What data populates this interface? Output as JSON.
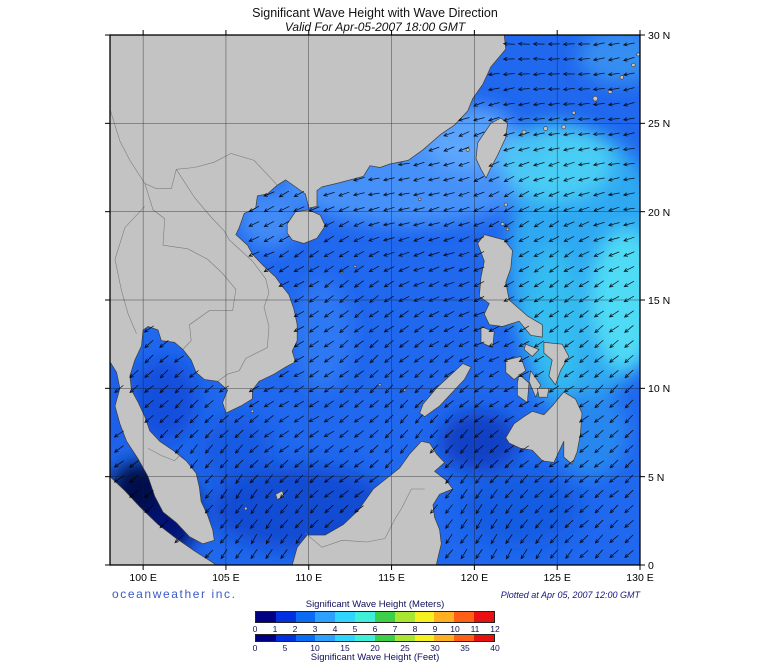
{
  "header": {
    "title": "Significant Wave Height with Wave Direction",
    "subtitle": "Valid For Apr-05-2007 18:00 GMT"
  },
  "footer": {
    "brand": "oceanweather inc.",
    "plotted": "Plotted at Apr 05, 2007 12:00 GMT"
  },
  "axes": {
    "x_labels": [
      "100 E",
      "105 E",
      "110 E",
      "115 E",
      "120 E",
      "125 E",
      "130 E"
    ],
    "x_lons": [
      100,
      105,
      110,
      115,
      120,
      125,
      130
    ],
    "y_labels": [
      "30 N",
      "25 N",
      "20 N",
      "15 N",
      "10 N",
      "5 N",
      "0"
    ],
    "y_lats": [
      30,
      25,
      20,
      15,
      10,
      5,
      0
    ]
  },
  "legend": {
    "meters_label": "Significant Wave Height (Meters)",
    "meters_ticks": [
      "0",
      "1",
      "2",
      "3",
      "4",
      "5",
      "6",
      "7",
      "8",
      "9",
      "10",
      "11",
      "12"
    ],
    "feet_label": "Significant Wave Height (Feet)",
    "feet_ticks": [
      "0",
      "5",
      "10",
      "15",
      "20",
      "25",
      "30",
      "35",
      "40"
    ],
    "colors": [
      "#000082",
      "#0030e0",
      "#0a6cf5",
      "#2da1ff",
      "#30d5ff",
      "#40efd8",
      "#3ecf48",
      "#a8e632",
      "#f5f020",
      "#ffb020",
      "#ff6015",
      "#e81010"
    ]
  },
  "palette": {
    "land": "#c3c3c3",
    "coastline": "#3c3c3c",
    "ocean": "#2068ee",
    "grid": "#1a1a1a",
    "arrow": "#000000",
    "frame": "#000000",
    "brand_blue": "#3a5bc7",
    "annotation_blue": "#16167e"
  },
  "map_data": {
    "type": "map",
    "variable": "Significant Wave Height",
    "overlay": "Wave Direction",
    "valid_time": "Apr-05-2007 18:00 GMT",
    "plotted_time": "Apr 05, 2007 12:00 GMT",
    "lon_range_deg_e": [
      98,
      130
    ],
    "lat_range_deg_n": [
      0,
      30
    ],
    "wave_height_scale_m": [
      0,
      12
    ],
    "wave_height_scale_ft": [
      0,
      40
    ]
  }
}
